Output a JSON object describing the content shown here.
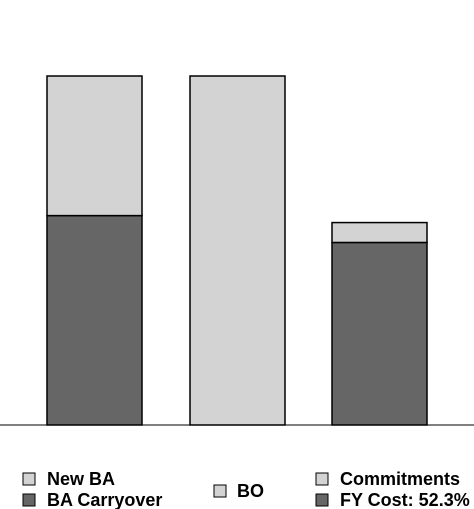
{
  "chart_data": {
    "type": "bar",
    "stacked": true,
    "title": "",
    "xlabel": "",
    "ylabel": "",
    "ylim": [
      0,
      100
    ],
    "grid": false,
    "legend_position": "bottom",
    "bars": [
      {
        "segments": [
          {
            "series": "BA Carryover",
            "value": 60,
            "color": "#666666"
          },
          {
            "series": "New BA",
            "value": 40,
            "color": "#d3d3d3"
          }
        ]
      },
      {
        "segments": [
          {
            "series": "BO",
            "value": 100,
            "color": "#d3d3d3"
          }
        ]
      },
      {
        "segments": [
          {
            "series": "FY Cost: 52.3%",
            "value": 52.3,
            "color": "#666666"
          },
          {
            "series": "Commitments",
            "value": 5.7,
            "color": "#d3d3d3"
          }
        ]
      }
    ],
    "legend": [
      {
        "label": "New BA",
        "color": "#d3d3d3"
      },
      {
        "label": "BA Carryover",
        "color": "#666666"
      },
      {
        "label": "BO",
        "color": "#d3d3d3"
      },
      {
        "label": "Commitments",
        "color": "#d3d3d3"
      },
      {
        "label": "FY Cost: 52.3%",
        "color": "#666666"
      }
    ]
  }
}
